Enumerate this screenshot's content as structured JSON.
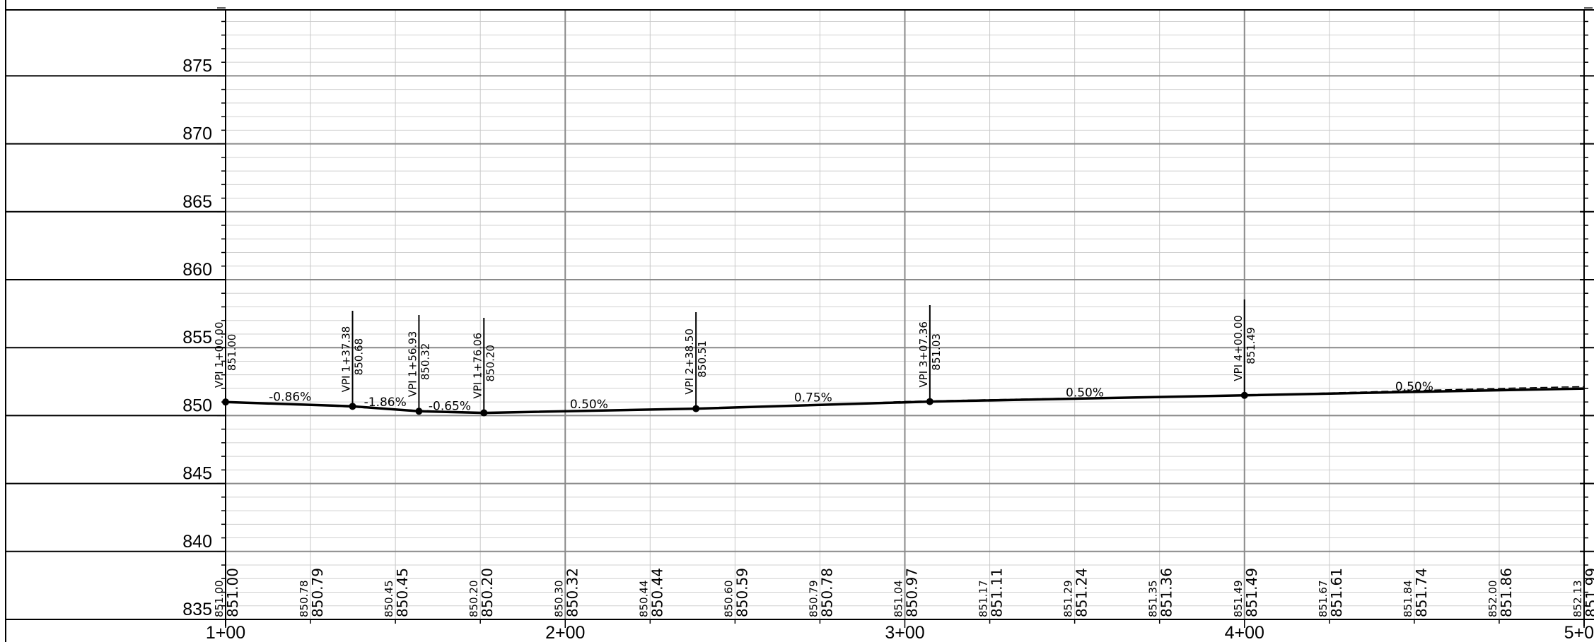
{
  "chart_data": {
    "type": "line",
    "elevation_axis": {
      "range": [
        835,
        880
      ],
      "major_step": 5,
      "minor_step": 1,
      "labels": [
        "835",
        "840",
        "845",
        "850",
        "855",
        "860",
        "865",
        "870",
        "875"
      ]
    },
    "station_axis": {
      "range": [
        100,
        500
      ],
      "major_step": 100,
      "minor_step": 25,
      "labels": [
        "1+00",
        "2+00",
        "3+00",
        "4+00",
        "5+0"
      ]
    },
    "grid": true,
    "vpis": [
      {
        "station": 100.0,
        "elevation": 851.0,
        "station_label": "VPI 1+00.00",
        "elev_label": "851.00"
      },
      {
        "station": 137.38,
        "elevation": 850.68,
        "station_label": "VPI 1+37.38",
        "elev_label": "850.68"
      },
      {
        "station": 156.93,
        "elevation": 850.32,
        "station_label": "VPI 1+56.93",
        "elev_label": "850.32"
      },
      {
        "station": 176.06,
        "elevation": 850.2,
        "station_label": "VPI 1+76.06",
        "elev_label": "850.20"
      },
      {
        "station": 238.5,
        "elevation": 850.51,
        "station_label": "VPI 2+38.50",
        "elev_label": "850.51"
      },
      {
        "station": 307.36,
        "elevation": 851.03,
        "station_label": "VPI 3+07.36",
        "elev_label": "851.03"
      },
      {
        "station": 400.0,
        "elevation": 851.49,
        "station_label": "VPI 4+00.00",
        "elev_label": "851.49"
      },
      {
        "station": 500.0,
        "elevation": 851.99
      }
    ],
    "grades": [
      {
        "label": "-0.86%",
        "station": 119,
        "elevation": 851.09
      },
      {
        "label": "-1.86%",
        "station": 147,
        "elevation": 850.7
      },
      {
        "label": "-0.65%",
        "station": 166,
        "elevation": 850.42
      },
      {
        "label": "0.50%",
        "station": 207,
        "elevation": 850.53
      },
      {
        "label": "0.75%",
        "station": 273,
        "elevation": 851.04
      },
      {
        "label": "0.50%",
        "station": 353,
        "elevation": 851.41
      },
      {
        "label": "0.50%",
        "station": 450,
        "elevation": 851.85
      }
    ],
    "existing_ground": [
      {
        "station": 100,
        "elevation": 851.0
      },
      {
        "station": 125,
        "elevation": 850.78
      },
      {
        "station": 150,
        "elevation": 850.45
      },
      {
        "station": 175,
        "elevation": 850.2
      },
      {
        "station": 200,
        "elevation": 850.3
      },
      {
        "station": 225,
        "elevation": 850.44
      },
      {
        "station": 250,
        "elevation": 850.6
      },
      {
        "station": 275,
        "elevation": 850.79
      },
      {
        "station": 300,
        "elevation": 851.04
      },
      {
        "station": 325,
        "elevation": 851.17
      },
      {
        "station": 350,
        "elevation": 851.29
      },
      {
        "station": 375,
        "elevation": 851.35
      },
      {
        "station": 400,
        "elevation": 851.49
      },
      {
        "station": 425,
        "elevation": 851.67
      },
      {
        "station": 450,
        "elevation": 851.84
      },
      {
        "station": 475,
        "elevation": 852.0
      },
      {
        "station": 500,
        "elevation": 852.13
      }
    ],
    "elevation_labels_row": [
      {
        "station": 100,
        "existing": "851.00",
        "proposed": "851.00"
      },
      {
        "station": 125,
        "existing": "850.78",
        "proposed": "850.79"
      },
      {
        "station": 150,
        "existing": "850.45",
        "proposed": "850.45"
      },
      {
        "station": 175,
        "existing": "850.20",
        "proposed": "850.20"
      },
      {
        "station": 200,
        "existing": "850.30",
        "proposed": "850.32"
      },
      {
        "station": 225,
        "existing": "850.44",
        "proposed": "850.44"
      },
      {
        "station": 250,
        "existing": "850.60",
        "proposed": "850.59"
      },
      {
        "station": 275,
        "existing": "850.79",
        "proposed": "850.78"
      },
      {
        "station": 300,
        "existing": "851.04",
        "proposed": "850.97"
      },
      {
        "station": 325,
        "existing": "851.17",
        "proposed": "851.11"
      },
      {
        "station": 350,
        "existing": "851.29",
        "proposed": "851.24"
      },
      {
        "station": 375,
        "existing": "851.35",
        "proposed": "851.36"
      },
      {
        "station": 400,
        "existing": "851.49",
        "proposed": "851.49"
      },
      {
        "station": 425,
        "existing": "851.67",
        "proposed": "851.61"
      },
      {
        "station": 450,
        "existing": "851.84",
        "proposed": "851.74"
      },
      {
        "station": 475,
        "existing": "852.00",
        "proposed": "851.86"
      },
      {
        "station": 500,
        "existing": "852.13",
        "proposed": "851.99"
      }
    ]
  }
}
